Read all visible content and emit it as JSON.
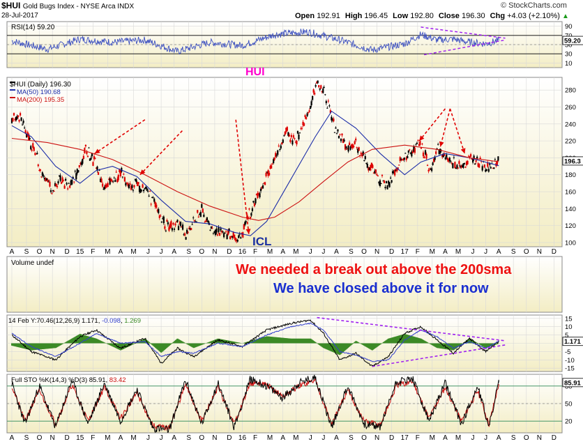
{
  "header": {
    "symbol": "$HUI",
    "name": "Gold Bugs Index - NYSE Arca  INDX",
    "date": "28-Jul-2017",
    "open_label": "Open",
    "open": "192.91",
    "high_label": "High",
    "high": "196.45",
    "low_label": "Low",
    "low": "192.80",
    "close_label": "Close",
    "close": "196.30",
    "chg_label": "Chg",
    "chg": "+4.03 (+2.10%)",
    "chg_arrow": "▲",
    "brand": "© StockCharts.com"
  },
  "chart_data": [
    {
      "type": "line",
      "panel": "rsi",
      "legend": "RSI(14) 59.20",
      "last_value_label": "59.20",
      "ylim": [
        0,
        100
      ],
      "yticks": [
        10,
        30,
        50,
        70,
        90
      ],
      "guide_lines": [
        30,
        70
      ],
      "annotation": "HUI",
      "trend_lines": [
        {
          "x": [
            2017.1,
            2017.62
          ],
          "y": [
            88,
            64
          ]
        },
        {
          "x": [
            2017.12,
            2017.62
          ],
          "y": [
            28,
            60
          ]
        }
      ],
      "series": [
        {
          "name": "RSI(14)",
          "x": [
            2014.58,
            2014.8,
            2015.0,
            2015.2,
            2015.4,
            2015.6,
            2015.8,
            2016.0,
            2016.2,
            2016.4,
            2016.6,
            2016.8,
            2017.0,
            2017.1,
            2017.2,
            2017.3,
            2017.4,
            2017.5,
            2017.58
          ],
          "y": [
            58,
            40,
            62,
            55,
            60,
            35,
            55,
            48,
            72,
            78,
            60,
            38,
            52,
            72,
            60,
            62,
            55,
            52,
            59
          ]
        }
      ]
    },
    {
      "type": "line",
      "panel": "price",
      "legend": [
        {
          "label": "$HUI (Daily) 196.30",
          "color": "#000000"
        },
        {
          "label": "MA(50) 190.68",
          "color": "#1c2da8"
        },
        {
          "label": "MA(200) 195.35",
          "color": "#cc1111"
        }
      ],
      "last_value_label": "196.3",
      "ylim": [
        95,
        295
      ],
      "yticks": [
        100,
        120,
        140,
        160,
        180,
        200,
        220,
        240,
        260,
        280
      ],
      "annotations": [
        "ICL"
      ],
      "arrow_tips": [
        {
          "x": 2015.09,
          "y": 205
        },
        {
          "x": 2015.37,
          "y": 180
        },
        {
          "x": 2016.04,
          "y": 110
        },
        {
          "x": 2017.09,
          "y": 220
        },
        {
          "x": 2017.22,
          "y": 213
        },
        {
          "x": 2017.37,
          "y": 205
        }
      ],
      "series": [
        {
          "name": "$HUI",
          "x": [
            2014.58,
            2014.62,
            2014.67,
            2014.72,
            2014.78,
            2014.83,
            2014.88,
            2014.92,
            2014.96,
            2015.0,
            2015.04,
            2015.07,
            2015.1,
            2015.15,
            2015.2,
            2015.25,
            2015.3,
            2015.35,
            2015.4,
            2015.45,
            2015.5,
            2015.55,
            2015.6,
            2015.65,
            2015.7,
            2015.75,
            2015.8,
            2015.85,
            2015.9,
            2015.95,
            2016.0,
            2016.03,
            2016.08,
            2016.13,
            2016.2,
            2016.27,
            2016.33,
            2016.38,
            2016.42,
            2016.46,
            2016.5,
            2016.55,
            2016.6,
            2016.65,
            2016.7,
            2016.75,
            2016.8,
            2016.85,
            2016.9,
            2016.95,
            2017.0,
            2017.05,
            2017.09,
            2017.12,
            2017.16,
            2017.2,
            2017.25,
            2017.3,
            2017.35,
            2017.4,
            2017.45,
            2017.5,
            2017.54,
            2017.58
          ],
          "y": [
            245,
            250,
            230,
            205,
            178,
            158,
            180,
            165,
            175,
            192,
            210,
            200,
            192,
            160,
            175,
            182,
            168,
            170,
            162,
            150,
            130,
            115,
            122,
            110,
            125,
            138,
            118,
            110,
            112,
            105,
            108,
            128,
            150,
            170,
            200,
            230,
            220,
            240,
            262,
            288,
            280,
            245,
            225,
            210,
            215,
            200,
            185,
            175,
            168,
            190,
            200,
            210,
            218,
            205,
            185,
            210,
            200,
            195,
            190,
            200,
            195,
            188,
            190,
            196.3
          ]
        },
        {
          "name": "MA(50)",
          "x": [
            2014.58,
            2014.7,
            2014.85,
            2015.0,
            2015.1,
            2015.2,
            2015.35,
            2015.5,
            2015.65,
            2015.8,
            2015.95,
            2016.05,
            2016.15,
            2016.3,
            2016.45,
            2016.55,
            2016.7,
            2016.85,
            2017.0,
            2017.1,
            2017.25,
            2017.4,
            2017.58
          ],
          "y": [
            238,
            225,
            190,
            170,
            185,
            190,
            178,
            150,
            125,
            122,
            112,
            108,
            125,
            175,
            225,
            255,
            235,
            205,
            180,
            195,
            205,
            200,
            190.68
          ]
        },
        {
          "name": "MA(200)",
          "x": [
            2014.58,
            2014.8,
            2015.0,
            2015.2,
            2015.4,
            2015.6,
            2015.8,
            2016.0,
            2016.1,
            2016.2,
            2016.35,
            2016.5,
            2016.65,
            2016.8,
            2017.0,
            2017.2,
            2017.4,
            2017.58
          ],
          "y": [
            223,
            218,
            210,
            198,
            180,
            160,
            143,
            130,
            126,
            130,
            148,
            172,
            195,
            210,
            215,
            210,
            200,
            195.35
          ]
        }
      ]
    },
    {
      "type": "text",
      "panel": "volume",
      "legend": "Volume undef",
      "annotations": [
        "We needed a break out above the 200sma",
        "We have closed above it for now"
      ]
    },
    {
      "type": "line",
      "panel": "macd",
      "legend": "14 Feb Y:70.46 (12,26,9) 1.171, -0.098, 1.269",
      "legend_parts": [
        "14 Feb Y:70.46",
        "(12,26,9) 1.171, ",
        "-0.098",
        ", ",
        "1.269"
      ],
      "last_value_label": "1.171",
      "ylim": [
        -17,
        17
      ],
      "yticks": [
        -15,
        -10,
        -5,
        0,
        5,
        10,
        15
      ],
      "trend_lines": [
        {
          "x": [
            2016.46,
            2017.62
          ],
          "y": [
            15.5,
            1.5
          ]
        },
        {
          "x": [
            2016.8,
            2017.62
          ],
          "y": [
            -14,
            -1
          ]
        }
      ],
      "series": [
        {
          "name": "MACD",
          "x": [
            2014.58,
            2014.7,
            2014.85,
            2015.0,
            2015.1,
            2015.25,
            2015.4,
            2015.5,
            2015.6,
            2015.7,
            2015.85,
            2016.0,
            2016.15,
            2016.3,
            2016.42,
            2016.5,
            2016.6,
            2016.7,
            2016.8,
            2016.9,
            2017.0,
            2017.1,
            2017.2,
            2017.3,
            2017.4,
            2017.5,
            2017.58
          ],
          "y": [
            5,
            -5,
            -10,
            4,
            8,
            -3,
            3,
            -12,
            -3,
            -8,
            2,
            -2,
            8,
            12,
            14,
            6,
            -10,
            -6,
            -14,
            -8,
            6,
            10,
            2,
            -6,
            3,
            -5,
            1.171
          ]
        },
        {
          "name": "Signal",
          "x": [
            2014.58,
            2014.7,
            2014.85,
            2015.0,
            2015.1,
            2015.25,
            2015.4,
            2015.5,
            2015.6,
            2015.7,
            2015.85,
            2016.0,
            2016.15,
            2016.3,
            2016.42,
            2016.5,
            2016.6,
            2016.7,
            2016.8,
            2016.9,
            2017.0,
            2017.1,
            2017.2,
            2017.3,
            2017.4,
            2017.5,
            2017.58
          ],
          "y": [
            6,
            -2,
            -8,
            0,
            6,
            0,
            1,
            -8,
            -5,
            -6,
            0,
            -2,
            5,
            10,
            12,
            8,
            -5,
            -7,
            -11,
            -10,
            2,
            8,
            4,
            -3,
            1,
            -3,
            1.269
          ]
        }
      ]
    },
    {
      "type": "line",
      "panel": "sto",
      "legend": "Full STO %K(14,3) %D(3) 85.91, 83.42",
      "legend_parts": [
        "Full STO %K(14,3) %D(3) 85.91, ",
        "83.42"
      ],
      "last_value_label": "85.91",
      "ylim": [
        0,
        100
      ],
      "yticks": [
        20,
        50,
        80
      ],
      "guide_lines": [
        20,
        80
      ],
      "series": [
        {
          "name": "%K",
          "x": [
            2014.58,
            2014.66,
            2014.75,
            2014.85,
            2014.95,
            2015.05,
            2015.15,
            2015.25,
            2015.35,
            2015.45,
            2015.55,
            2015.65,
            2015.75,
            2015.85,
            2015.95,
            2016.05,
            2016.15,
            2016.25,
            2016.35,
            2016.45,
            2016.55,
            2016.65,
            2016.75,
            2016.85,
            2016.95,
            2017.05,
            2017.15,
            2017.25,
            2017.35,
            2017.45,
            2017.52,
            2017.58
          ],
          "y": [
            85,
            15,
            80,
            10,
            90,
            15,
            85,
            20,
            75,
            8,
            5,
            90,
            15,
            85,
            10,
            92,
            80,
            60,
            85,
            95,
            10,
            80,
            15,
            10,
            88,
            92,
            20,
            85,
            15,
            80,
            10,
            85.91
          ]
        },
        {
          "name": "%D",
          "x": [
            2014.58,
            2014.66,
            2014.75,
            2014.85,
            2014.95,
            2015.05,
            2015.15,
            2015.25,
            2015.35,
            2015.45,
            2015.55,
            2015.65,
            2015.75,
            2015.85,
            2015.95,
            2016.05,
            2016.15,
            2016.25,
            2016.35,
            2016.45,
            2016.55,
            2016.65,
            2016.75,
            2016.85,
            2016.95,
            2017.05,
            2017.15,
            2017.25,
            2017.35,
            2017.45,
            2017.52,
            2017.58
          ],
          "y": [
            80,
            20,
            72,
            15,
            82,
            20,
            78,
            25,
            68,
            12,
            8,
            82,
            20,
            78,
            15,
            85,
            82,
            62,
            80,
            90,
            15,
            72,
            20,
            14,
            80,
            88,
            25,
            78,
            20,
            72,
            15,
            83.42
          ]
        }
      ]
    }
  ],
  "x_axis": {
    "labels": [
      {
        "x": 2014.58,
        "label": "A"
      },
      {
        "x": 2014.67,
        "label": "S"
      },
      {
        "x": 2014.75,
        "label": "O"
      },
      {
        "x": 2014.83,
        "label": "N"
      },
      {
        "x": 2014.92,
        "label": "D"
      },
      {
        "x": 2015.0,
        "label": "15"
      },
      {
        "x": 2015.08,
        "label": "F"
      },
      {
        "x": 2015.17,
        "label": "M"
      },
      {
        "x": 2015.25,
        "label": "A"
      },
      {
        "x": 2015.33,
        "label": "M"
      },
      {
        "x": 2015.42,
        "label": "J"
      },
      {
        "x": 2015.5,
        "label": "J"
      },
      {
        "x": 2015.58,
        "label": "A"
      },
      {
        "x": 2015.67,
        "label": "S"
      },
      {
        "x": 2015.75,
        "label": "O"
      },
      {
        "x": 2015.83,
        "label": "N"
      },
      {
        "x": 2015.92,
        "label": "D"
      },
      {
        "x": 2016.0,
        "label": "16"
      },
      {
        "x": 2016.08,
        "label": "F"
      },
      {
        "x": 2016.17,
        "label": "M"
      },
      {
        "x": 2016.25,
        "label": "A"
      },
      {
        "x": 2016.33,
        "label": "M"
      },
      {
        "x": 2016.42,
        "label": "J"
      },
      {
        "x": 2016.5,
        "label": "J"
      },
      {
        "x": 2016.58,
        "label": "A"
      },
      {
        "x": 2016.67,
        "label": "S"
      },
      {
        "x": 2016.75,
        "label": "O"
      },
      {
        "x": 2016.83,
        "label": "N"
      },
      {
        "x": 2016.92,
        "label": "D"
      },
      {
        "x": 2017.0,
        "label": "17"
      },
      {
        "x": 2017.08,
        "label": "F"
      },
      {
        "x": 2017.17,
        "label": "M"
      },
      {
        "x": 2017.25,
        "label": "A"
      },
      {
        "x": 2017.33,
        "label": "M"
      },
      {
        "x": 2017.42,
        "label": "J"
      },
      {
        "x": 2017.5,
        "label": "J"
      },
      {
        "x": 2017.58,
        "label": "A"
      },
      {
        "x": 2017.67,
        "label": "S"
      },
      {
        "x": 2017.75,
        "label": "O"
      },
      {
        "x": 2017.83,
        "label": "N"
      },
      {
        "x": 2017.92,
        "label": "D"
      }
    ],
    "range": [
      2014.55,
      2017.97
    ]
  },
  "colors": {
    "price_bg_top": "#ffffff",
    "price_bg_bottom": "#f3edc4",
    "panel_bg_top": "#ffffff",
    "panel_bg_bottom": "#f3edc4",
    "rsi_line": "#3a4ec0",
    "ma50": "#1c2da8",
    "ma200": "#cc1111",
    "price_up": "#000000",
    "price_down": "#dd0000",
    "trend_line": "#a020f0",
    "arrow": "#e00000",
    "hui_label": "#ff00cc",
    "icl_label": "#1a2fa0",
    "note_red": "#ee1111",
    "note_blue": "#1a2fd0",
    "macd_hist": "#3c8a26",
    "sto_k": "#000000",
    "sto_d": "#cc1111",
    "grid": "#d8d8d8"
  }
}
